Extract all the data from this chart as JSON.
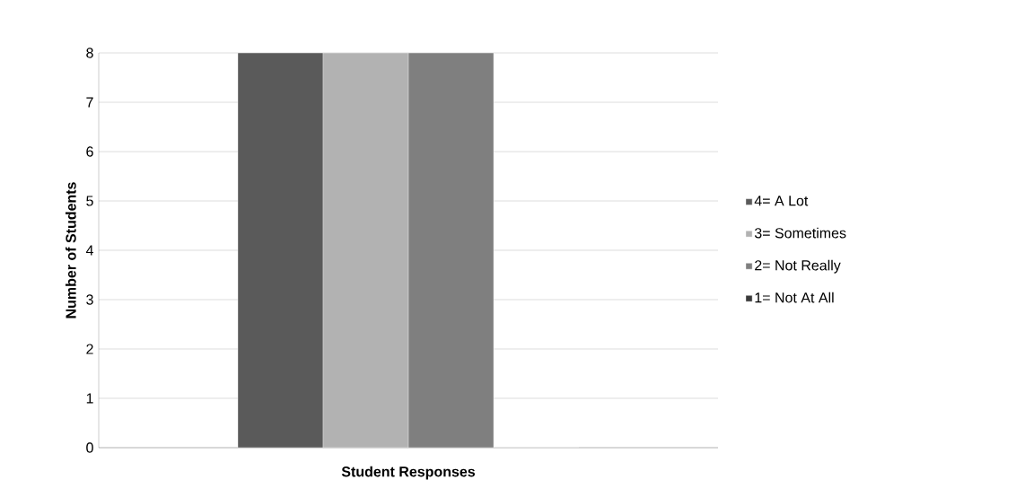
{
  "chart_data": {
    "type": "bar",
    "xlabel": "Student Responses",
    "ylabel": "Number of Students",
    "categories": [
      null
    ],
    "series": [
      {
        "name": "4= A Lot",
        "color": "#5a5a5a",
        "values": [
          8
        ]
      },
      {
        "name": "3= Sometimes",
        "color": "#b2b2b2",
        "values": [
          8
        ]
      },
      {
        "name": "2= Not Really",
        "color": "#7f7f7f",
        "values": [
          8
        ]
      },
      {
        "name": "1= Not At All",
        "color": "#3a3a3a",
        "values": [
          0
        ]
      }
    ],
    "ylim": [
      0,
      8
    ],
    "yticks": [
      0,
      1,
      2,
      3,
      4,
      5,
      6,
      7,
      8
    ],
    "grid": "y",
    "legend": "right"
  }
}
